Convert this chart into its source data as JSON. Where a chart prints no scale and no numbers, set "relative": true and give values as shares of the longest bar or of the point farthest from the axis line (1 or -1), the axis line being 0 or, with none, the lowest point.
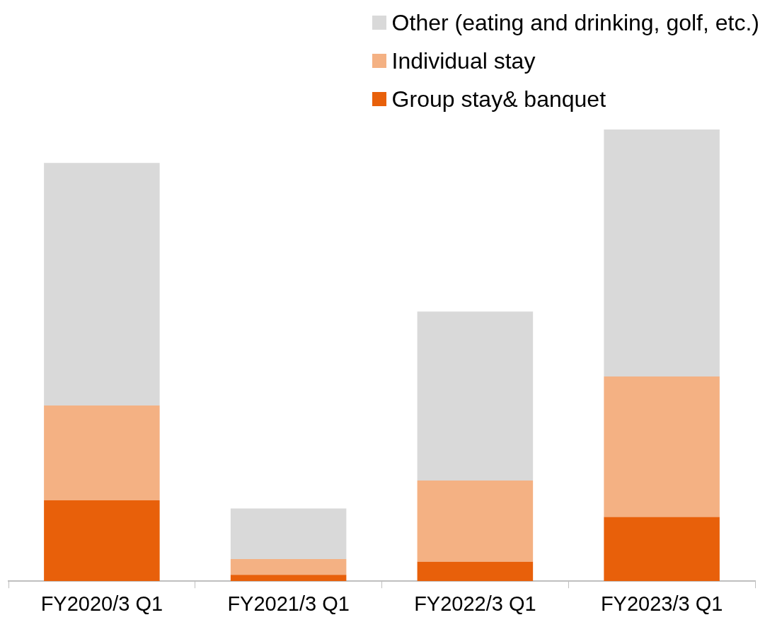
{
  "chart_data": {
    "type": "bar",
    "stacked": true,
    "relative": true,
    "legend": "top right",
    "grid": false,
    "categories": [
      "FY2020/3 Q1",
      "FY2021/3 Q1",
      "FY2022/3 Q1",
      "FY2023/3 Q1"
    ],
    "series": [
      {
        "name": "Group stay& banquet",
        "color": "#e8600a",
        "values": [
          0.179,
          0.014,
          0.043,
          0.142
        ]
      },
      {
        "name": "Individual stay",
        "color": "#f4b183",
        "values": [
          0.21,
          0.035,
          0.18,
          0.311
        ]
      },
      {
        "name": "Other (eating and drinking, golf, etc.)",
        "color": "#d9d9d9",
        "values": [
          0.537,
          0.112,
          0.374,
          0.547
        ]
      }
    ]
  }
}
